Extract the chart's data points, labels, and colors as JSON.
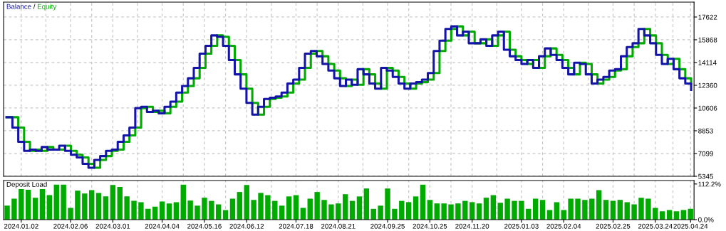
{
  "chart_data": [
    {
      "type": "step",
      "legend": "top left",
      "grid": true,
      "tick_labels": "y",
      "line_style": "solid",
      "marker": "none",
      "annotations": [
        "/"
      ],
      "categories": [
        null,
        null,
        null,
        null,
        null,
        null,
        null,
        null,
        null,
        null,
        null,
        null,
        null,
        null,
        null,
        null,
        null,
        null,
        null,
        null,
        null,
        null,
        null,
        null,
        null,
        null,
        null,
        null,
        null,
        null,
        null,
        null,
        null,
        null,
        null,
        null,
        null,
        null,
        null,
        null,
        null,
        null,
        null,
        null,
        null,
        null,
        null,
        null,
        null,
        null,
        null,
        null,
        null,
        null,
        null,
        null,
        null,
        null,
        null,
        null,
        null,
        null,
        null,
        null,
        null,
        null,
        null,
        null,
        null,
        null,
        null,
        null,
        null,
        null,
        null,
        null,
        null,
        null,
        null,
        null,
        null,
        null,
        null,
        null,
        null,
        null,
        null,
        null,
        null,
        null,
        null,
        null,
        null,
        null,
        null,
        null,
        null,
        null,
        null,
        null,
        null,
        null,
        null,
        null,
        null,
        null,
        null,
        null,
        null,
        null,
        null,
        null,
        null,
        null,
        null,
        null,
        null,
        null
      ],
      "ylim": [
        5345,
        18770
      ],
      "yticks": [
        5345,
        7099,
        8853,
        10606,
        12360,
        14114,
        15868,
        17622
      ],
      "series": [
        {
          "name": "Equity",
          "color": "#00aa00",
          "values": [
            9900,
            9900,
            9100,
            8000,
            7300,
            7400,
            7300,
            7600,
            7400,
            7400,
            7700,
            7300,
            7000,
            6800,
            6300,
            6000,
            6600,
            6900,
            7300,
            7400,
            8000,
            8500,
            9100,
            10600,
            10700,
            10300,
            10400,
            10200,
            10700,
            11100,
            11800,
            12300,
            12900,
            13700,
            14800,
            15400,
            16200,
            16100,
            15400,
            14300,
            13200,
            12100,
            11000,
            10100,
            10700,
            11300,
            11400,
            11500,
            11800,
            12500,
            12800,
            13700,
            14800,
            15000,
            14600,
            14000,
            13500,
            12900,
            12300,
            12800,
            12400,
            13600,
            13200,
            12500,
            12100,
            13700,
            13500,
            13000,
            12500,
            12100,
            12500,
            12600,
            12800,
            13300,
            15000,
            15800,
            16700,
            16900,
            16200,
            16500,
            15600,
            15600,
            15900,
            15400,
            16200,
            16500,
            15100,
            14600,
            14300,
            14000,
            14300,
            13700,
            14600,
            15200,
            14700,
            14300,
            13700,
            13200,
            14100,
            14000,
            13200,
            12500,
            12800,
            13000,
            13500,
            13600,
            14600,
            15300,
            15600,
            16700,
            16200,
            15600,
            14700,
            14000,
            14400,
            13600,
            12900,
            12500
          ]
        },
        {
          "name": "Balance",
          "color": "#1414a8",
          "values": [
            9900,
            9100,
            8000,
            7300,
            7400,
            7300,
            7600,
            7400,
            7400,
            7700,
            7300,
            7000,
            6800,
            6300,
            6000,
            6600,
            6900,
            7300,
            7400,
            8000,
            8500,
            9100,
            10600,
            10700,
            10300,
            10400,
            10200,
            10700,
            11100,
            11800,
            12300,
            12900,
            13700,
            14800,
            15400,
            16200,
            16100,
            15400,
            14300,
            13200,
            12100,
            11000,
            10100,
            10700,
            11300,
            11400,
            11500,
            11800,
            12500,
            12800,
            13700,
            14800,
            15000,
            14600,
            14000,
            13500,
            12900,
            12300,
            12800,
            12400,
            13600,
            13200,
            12500,
            12100,
            13700,
            13500,
            13000,
            12500,
            12100,
            12500,
            12600,
            12800,
            13300,
            15000,
            15800,
            16700,
            16900,
            16200,
            16500,
            15600,
            15600,
            15900,
            15400,
            16200,
            16500,
            15100,
            14600,
            14300,
            14000,
            14300,
            13700,
            14600,
            15200,
            14700,
            14300,
            13700,
            13200,
            14100,
            14000,
            13200,
            12500,
            12800,
            13000,
            13500,
            13600,
            14600,
            15300,
            15600,
            16700,
            16200,
            15600,
            14700,
            14000,
            14400,
            13600,
            12900,
            12500,
            12000
          ]
        }
      ]
    },
    {
      "type": "bar",
      "title": "Deposit Load",
      "grid": "x",
      "color": "#00aa00",
      "categories": [
        null,
        null,
        "2024.01.02",
        null,
        null,
        null,
        null,
        null,
        null,
        "2024.02.06",
        null,
        null,
        null,
        null,
        null,
        "2024.03.01",
        null,
        null,
        null,
        null,
        null,
        null,
        "2024.04.04",
        null,
        null,
        null,
        null,
        null,
        "2024.05.16",
        null,
        null,
        null,
        null,
        null,
        "2024.06.12",
        null,
        null,
        null,
        null,
        null,
        null,
        "2024.07.18",
        null,
        null,
        null,
        null,
        null,
        "2024.08.21",
        null,
        null,
        null,
        null,
        null,
        null,
        "2024.09.25",
        null,
        null,
        null,
        null,
        null,
        "2024.10.25",
        null,
        null,
        null,
        null,
        null,
        "2024.11.20",
        null,
        null,
        null,
        null,
        null,
        null,
        "2025.01.03",
        null,
        null,
        null,
        null,
        null,
        "2025.02.04",
        null,
        null,
        null,
        null,
        null,
        null,
        "2025.02.25",
        null,
        null,
        null,
        null,
        null,
        "2025.03.24",
        null,
        null,
        null,
        null,
        "2025.04.24"
      ],
      "ylim": [
        0,
        123
      ],
      "yticks": [
        {
          "value": 0,
          "label": "0.0%"
        },
        {
          "value": 112.2,
          "label": "112.2%"
        }
      ],
      "values": [
        44,
        66,
        96,
        94,
        69,
        96,
        77,
        110,
        110,
        37,
        91,
        82,
        93,
        84,
        73,
        109,
        103,
        73,
        59,
        55,
        34,
        41,
        57,
        51,
        55,
        110,
        60,
        44,
        69,
        59,
        48,
        30,
        66,
        87,
        109,
        62,
        84,
        77,
        59,
        44,
        73,
        77,
        37,
        66,
        87,
        62,
        48,
        51,
        80,
        59,
        73,
        98,
        34,
        44,
        98,
        34,
        59,
        55,
        73,
        110,
        62,
        51,
        51,
        48,
        51,
        59,
        55,
        51,
        69,
        77,
        53,
        66,
        59,
        59,
        34,
        66,
        62,
        30,
        55,
        30,
        66,
        66,
        62,
        66,
        93,
        62,
        59,
        62,
        55,
        48,
        69,
        66,
        37,
        26,
        30,
        26,
        30,
        34
      ]
    }
  ]
}
